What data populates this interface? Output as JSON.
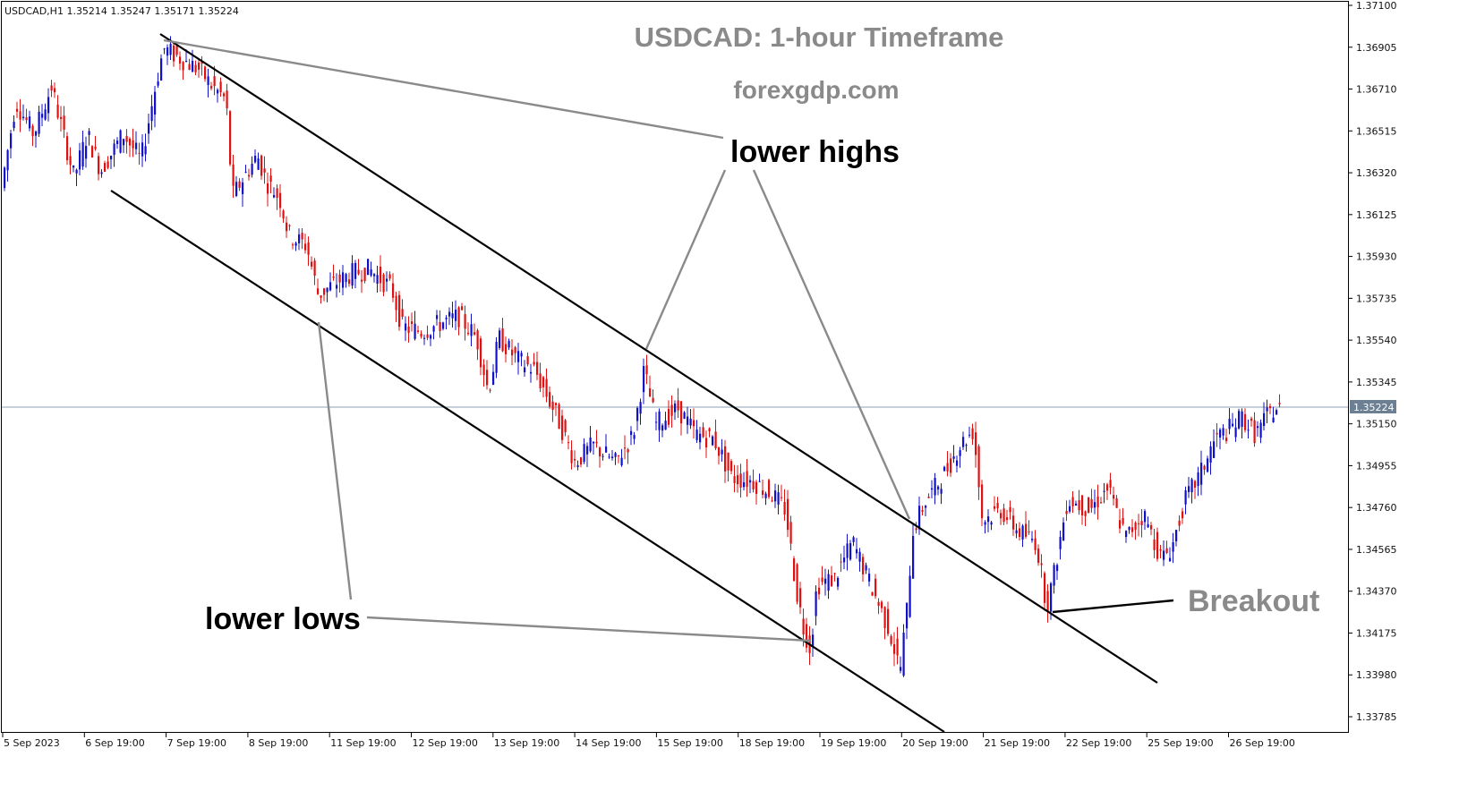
{
  "colors": {
    "bull": "#1010c8",
    "bear": "#e01010",
    "annotation": "#8a8a8a",
    "price_line": "#8ea2b4",
    "frame": "#000000"
  },
  "chart_data": {
    "type": "candlestick",
    "header": "USDCAD,H1  1.35214 1.35247 1.35171 1.35224",
    "title": "USDCAD: 1-hour Timeframe",
    "subtitle": "forexgdp.com",
    "ylim": [
      1.377,
      1.371
    ],
    "y_ticks": [
      "1.37100",
      "1.36905",
      "1.36710",
      "1.36515",
      "1.36320",
      "1.36125",
      "1.35930",
      "1.35735",
      "1.35540",
      "1.35345",
      "1.35150",
      "1.34955",
      "1.34760",
      "1.34565",
      "1.34370",
      "1.34175",
      "1.33980",
      "1.33785"
    ],
    "x_ticks": [
      "5 Sep 2023",
      "6 Sep 19:00",
      "7 Sep 19:00",
      "8 Sep 19:00",
      "11 Sep 19:00",
      "12 Sep 19:00",
      "13 Sep 19:00",
      "14 Sep 19:00",
      "15 Sep 19:00",
      "18 Sep 19:00",
      "19 Sep 19:00",
      "20 Sep 19:00",
      "21 Sep 19:00",
      "22 Sep 19:00",
      "25 Sep 19:00",
      "26 Sep 19:00"
    ],
    "current_price": "1.35224",
    "price_path": [
      [
        0,
        1.3615
      ],
      [
        20,
        1.3665
      ],
      [
        40,
        1.365
      ],
      [
        60,
        1.3672
      ],
      [
        85,
        1.363
      ],
      [
        100,
        1.365
      ],
      [
        115,
        1.3633
      ],
      [
        140,
        1.365
      ],
      [
        160,
        1.3638
      ],
      [
        175,
        1.367
      ],
      [
        185,
        1.369
      ],
      [
        205,
        1.3685
      ],
      [
        225,
        1.368
      ],
      [
        240,
        1.3672
      ],
      [
        255,
        1.3666
      ],
      [
        262,
        1.3621
      ],
      [
        275,
        1.363
      ],
      [
        290,
        1.364
      ],
      [
        300,
        1.3628
      ],
      [
        315,
        1.362
      ],
      [
        325,
        1.3603
      ],
      [
        345,
        1.3598
      ],
      [
        358,
        1.3575
      ],
      [
        375,
        1.358
      ],
      [
        395,
        1.3585
      ],
      [
        415,
        1.3587
      ],
      [
        440,
        1.3578
      ],
      [
        452,
        1.356
      ],
      [
        475,
        1.3558
      ],
      [
        495,
        1.3562
      ],
      [
        515,
        1.3565
      ],
      [
        535,
        1.3555
      ],
      [
        548,
        1.353
      ],
      [
        560,
        1.3555
      ],
      [
        580,
        1.3545
      ],
      [
        600,
        1.354
      ],
      [
        625,
        1.3518
      ],
      [
        645,
        1.3497
      ],
      [
        665,
        1.3505
      ],
      [
        690,
        1.3497
      ],
      [
        710,
        1.351
      ],
      [
        722,
        1.354
      ],
      [
        735,
        1.3515
      ],
      [
        760,
        1.3522
      ],
      [
        780,
        1.351
      ],
      [
        800,
        1.3508
      ],
      [
        820,
        1.349
      ],
      [
        845,
        1.3488
      ],
      [
        865,
        1.3482
      ],
      [
        880,
        1.3475
      ],
      [
        892,
        1.3438
      ],
      [
        900,
        1.342
      ],
      [
        908,
        1.341
      ],
      [
        915,
        1.344
      ],
      [
        935,
        1.3443
      ],
      [
        955,
        1.346
      ],
      [
        975,
        1.344
      ],
      [
        995,
        1.342
      ],
      [
        1008,
        1.34
      ],
      [
        1016,
        1.343
      ],
      [
        1022,
        1.3465
      ],
      [
        1035,
        1.3478
      ],
      [
        1055,
        1.349
      ],
      [
        1075,
        1.3505
      ],
      [
        1090,
        1.3512
      ],
      [
        1100,
        1.347
      ],
      [
        1120,
        1.3475
      ],
      [
        1140,
        1.3465
      ],
      [
        1160,
        1.346
      ],
      [
        1172,
        1.343
      ],
      [
        1180,
        1.3445
      ],
      [
        1195,
        1.348
      ],
      [
        1220,
        1.3475
      ],
      [
        1240,
        1.3485
      ],
      [
        1260,
        1.3462
      ],
      [
        1280,
        1.3473
      ],
      [
        1300,
        1.3452
      ],
      [
        1312,
        1.3458
      ],
      [
        1325,
        1.3478
      ],
      [
        1345,
        1.3493
      ],
      [
        1360,
        1.3508
      ],
      [
        1375,
        1.3512
      ],
      [
        1390,
        1.3518
      ],
      [
        1405,
        1.351
      ],
      [
        1420,
        1.352
      ],
      [
        1430,
        1.3522
      ]
    ],
    "annotations": {
      "lower_highs": "lower highs",
      "lower_lows": "lower lows",
      "breakout": "Breakout"
    }
  }
}
